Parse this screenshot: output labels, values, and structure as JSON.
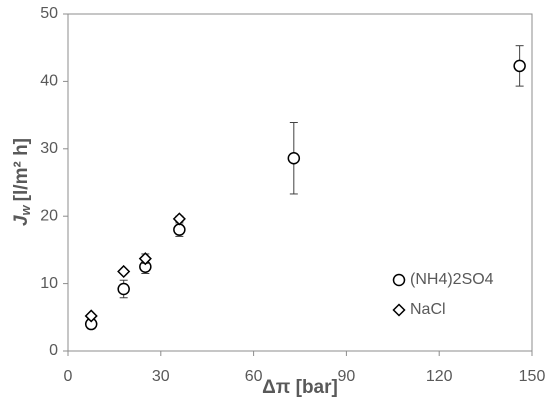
{
  "chart_data": {
    "type": "scatter",
    "xlabel": "Δπ [bar]",
    "ylabel": {
      "symbol": "J",
      "subscript": "w",
      "unit": "[l/m² h]"
    },
    "xlim": [
      0,
      150
    ],
    "xticks": [
      0,
      30,
      60,
      90,
      120,
      150
    ],
    "ylim": [
      0,
      50
    ],
    "yticks": [
      0,
      10,
      20,
      30,
      40,
      50
    ],
    "series": [
      {
        "name": "(NH4)2SO4",
        "marker": "circle",
        "color": "#000000",
        "x": [
          7.5,
          18,
          25,
          36,
          73,
          146
        ],
        "values": [
          4.0,
          9.2,
          12.5,
          18.0,
          28.6,
          42.3
        ],
        "errors": [
          0.7,
          1.3,
          1.0,
          1.0,
          5.3,
          3.0
        ]
      },
      {
        "name": "NaCl",
        "marker": "diamond",
        "color": "#000000",
        "x": [
          7.5,
          18,
          25,
          36
        ],
        "values": [
          5.2,
          11.8,
          13.7,
          19.6
        ],
        "errors": [
          null,
          null,
          0.7,
          0.4
        ]
      }
    ]
  }
}
